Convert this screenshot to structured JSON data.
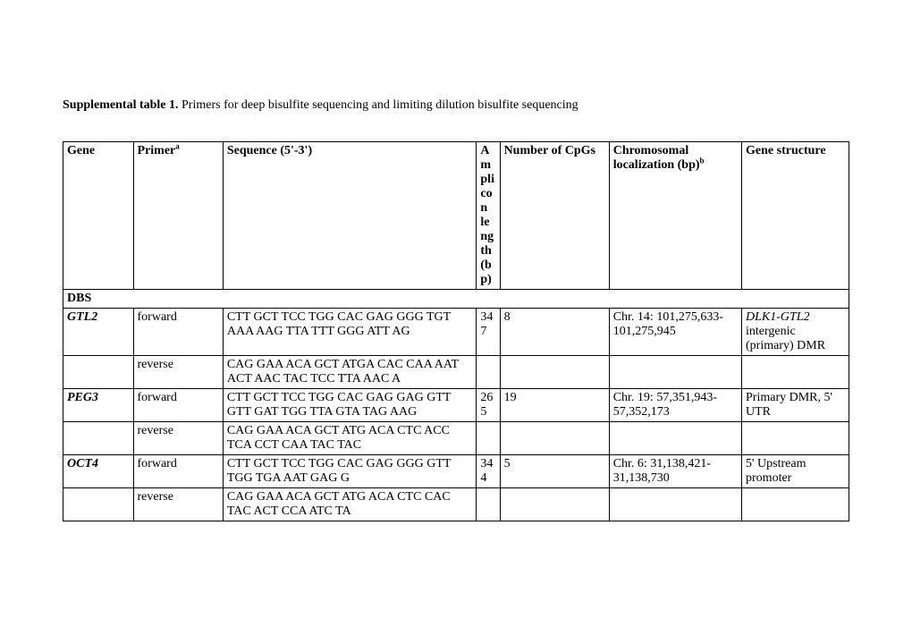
{
  "caption": {
    "label": "Supplemental table 1.",
    "text": "  Primers for deep bisulfite sequencing and limiting dilution bisulfite sequencing"
  },
  "headers": {
    "gene": "Gene",
    "primer": "Primer",
    "primer_sup": "a",
    "sequence": "Sequence  (5'-3')",
    "amplicon": "Amplicon length (bp)",
    "cpgs": "Number of CpGs",
    "chrom": "Chromosomal localization (bp)",
    "chrom_sup": "b",
    "structure": "Gene structure"
  },
  "section": "DBS",
  "rows": {
    "gtl2": {
      "gene": "GTL2",
      "primer_f": "forward",
      "seq_f": "CTT GCT TCC TGG CAC GAG GGG TGT AAA AAG TTA TTT GGG ATT AG",
      "amp": "347",
      "cpgs": "8",
      "chrom": "Chr. 14: 101,275,633-101,275,945",
      "structure_i": "DLK1-GTL2",
      "structure_r": " intergenic (primary) DMR",
      "primer_r": "reverse",
      "seq_r": "CAG GAA ACA GCT ATGA CAC CAA AAT ACT AAC TAC TCC TTA AAC A"
    },
    "peg3": {
      "gene": "PEG3",
      "primer_f": "forward",
      "seq_f": "CTT GCT TCC TGG CAC GAG GAG GTT GTT GAT TGG TTA GTA TAG AAG",
      "amp": "265",
      "cpgs": "19",
      "chrom": "Chr. 19: 57,351,943-57,352,173",
      "structure": "Primary DMR, 5' UTR",
      "primer_r": "reverse",
      "seq_r": "CAG GAA ACA GCT ATG ACA CTC ACC TCA CCT CAA TAC TAC"
    },
    "oct4": {
      "gene": "OCT4",
      "primer_f": "forward",
      "seq_f": "CTT GCT TCC TGG CAC GAG GGG GTT TGG TGA AAT GAG G",
      "amp": "344",
      "cpgs": "5",
      "chrom": "Chr. 6: 31,138,421-31,138,730",
      "structure": "5' Upstream promoter",
      "primer_r": "reverse",
      "seq_r": "CAG GAA ACA GCT ATG ACA CTC CAC TAC ACT CCA ATC TA"
    }
  },
  "col_widths": {
    "gene": "72px",
    "primer": "92px",
    "sequence": "260px",
    "amplicon": "24px",
    "cpgs": "112px",
    "chrom": "136px",
    "structure": "110px"
  }
}
